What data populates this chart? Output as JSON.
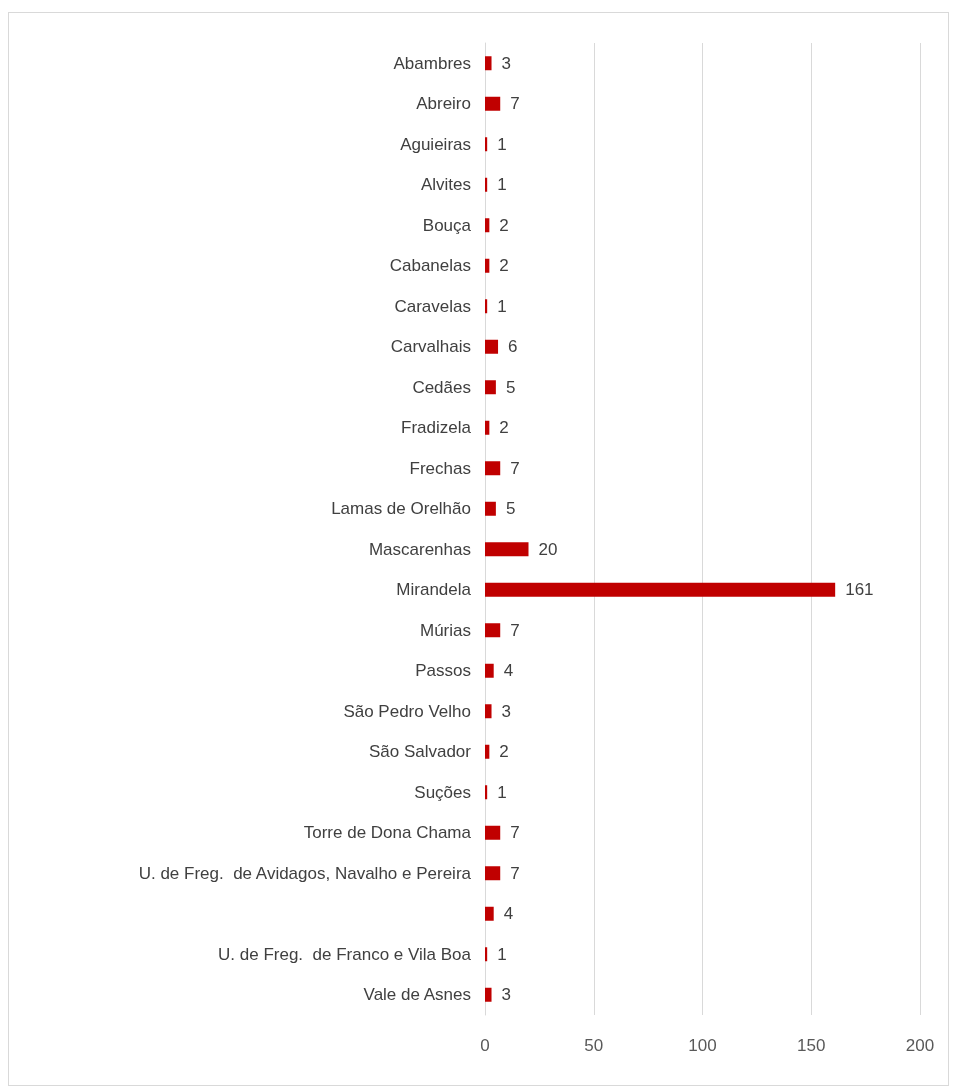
{
  "chart_data": {
    "type": "bar",
    "orientation": "horizontal",
    "categories": [
      "Abambres",
      "Abreiro",
      "Aguieiras",
      "Alvites",
      "Bouça",
      "Cabanelas",
      "Caravelas",
      "Carvalhais",
      "Cedães",
      "Fradizela",
      "Frechas",
      "Lamas de Orelhão",
      "Mascarenhas",
      "Mirandela",
      "Múrias",
      "Passos",
      "São Pedro Velho",
      "São Salvador",
      "Suções",
      "Torre de Dona Chama",
      "U. de Freg.  de Avidagos, Navalho e Pereira",
      null,
      "U. de Freg.  de Franco e Vila Boa",
      "Vale de Asnes"
    ],
    "values": [
      3,
      7,
      1,
      1,
      2,
      2,
      1,
      6,
      5,
      2,
      7,
      5,
      20,
      161,
      7,
      4,
      3,
      2,
      1,
      7,
      7,
      4,
      1,
      3
    ],
    "color": "#c00000",
    "xlim": [
      0,
      200
    ],
    "xticks": [
      0,
      50,
      100,
      150,
      200
    ],
    "grid": "x",
    "data_labels": true
  }
}
